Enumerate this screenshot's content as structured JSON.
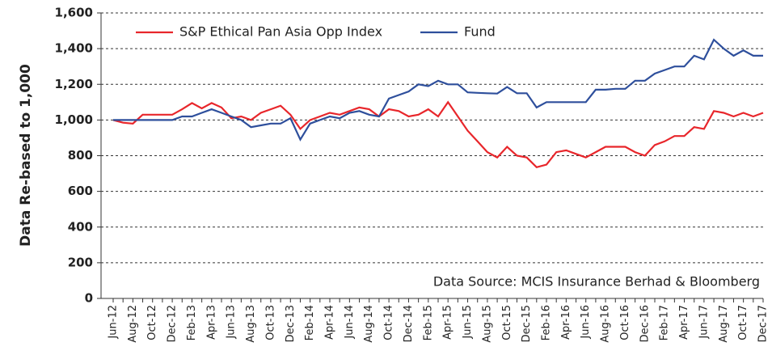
{
  "chart_data": {
    "type": "line",
    "y_label": "Data Re-based to 1,000",
    "annotation": "Data Source: MCIS Insurance Berhad & Bloomberg",
    "categories": [
      "Jun-12",
      null,
      "Aug-12",
      null,
      "Oct-12",
      null,
      "Dec-12",
      null,
      "Feb-13",
      null,
      "Apr-13",
      null,
      "Jun-13",
      null,
      "Aug-13",
      null,
      "Oct-13",
      null,
      "Dec-13",
      null,
      "Feb-14",
      null,
      "Apr-14",
      null,
      "Jun-14",
      null,
      "Aug-14",
      null,
      "Oct-14",
      null,
      "Dec-14",
      null,
      "Feb-15",
      null,
      "Apr-15",
      null,
      "Jun-15",
      null,
      "Aug-15",
      null,
      "Oct-15",
      null,
      "Dec-15",
      null,
      "Feb-16",
      null,
      "Apr-16",
      null,
      "Jun-16",
      null,
      "Aug-16",
      null,
      "Oct-16",
      null,
      "Dec-16",
      null,
      "Feb-17",
      null,
      "Apr-17",
      null,
      "Jun-17",
      null,
      "Aug-17",
      null,
      "Oct-17",
      null,
      "Dec-17"
    ],
    "series": [
      {
        "name": "S&P Ethical Pan Asia Opp Index",
        "color": "#e8262b",
        "values": [
          1000,
          985,
          980,
          1030,
          1030,
          1030,
          1030,
          1060,
          1095,
          1065,
          1095,
          1070,
          1010,
          1020,
          1000,
          1040,
          1060,
          1080,
          1030,
          950,
          1000,
          1020,
          1040,
          1030,
          1050,
          1070,
          1060,
          1020,
          1060,
          1050,
          1020,
          1030,
          1060,
          1020,
          1100,
          1020,
          940,
          880,
          820,
          790,
          850,
          800,
          790,
          735,
          750,
          820,
          830,
          810,
          790,
          820,
          850,
          850,
          850,
          820,
          800,
          860,
          880,
          910,
          910,
          960,
          950,
          1050,
          1040,
          1020,
          1040,
          1020,
          1040
        ]
      },
      {
        "name": "Fund",
        "color": "#2e4f9c",
        "values": [
          1000,
          1000,
          1000,
          1000,
          1000,
          1000,
          1000,
          1020,
          1020,
          1040,
          1060,
          1040,
          1020,
          1000,
          960,
          970,
          980,
          980,
          1010,
          890,
          980,
          1000,
          1020,
          1010,
          1040,
          1050,
          1030,
          1020,
          1120,
          1140,
          1160,
          1200,
          1190,
          1220,
          1200,
          1200,
          1155,
          1152,
          1150,
          1148,
          1185,
          1150,
          1150,
          1070,
          1100,
          1100,
          1100,
          1100,
          1100,
          1170,
          1170,
          1175,
          1175,
          1220,
          1220,
          1260,
          1280,
          1300,
          1300,
          1360,
          1340,
          1450,
          1400,
          1360,
          1390,
          1360,
          1360
        ]
      }
    ],
    "ylim": [
      0,
      1600
    ],
    "yticks": [
      0,
      200,
      400,
      600,
      800,
      {
        "value": 1000,
        "label": "1,000"
      },
      {
        "value": 1200,
        "label": "1,200"
      },
      {
        "value": 1400,
        "label": "1,400"
      },
      {
        "value": 1600,
        "label": "1,600"
      }
    ],
    "grid": true
  }
}
